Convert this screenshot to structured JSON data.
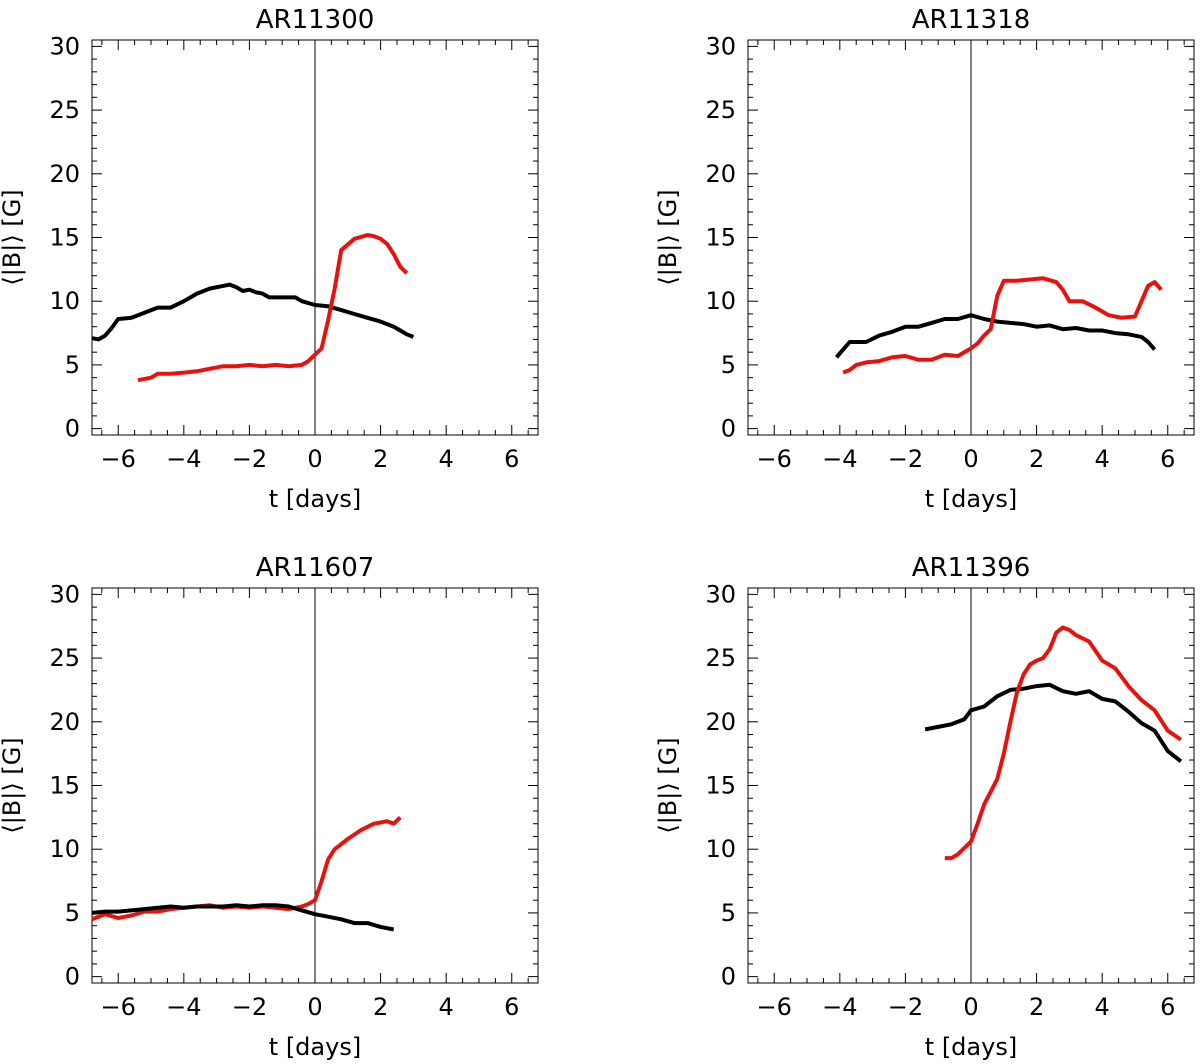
{
  "chart_data": [
    {
      "type": "line",
      "title": "AR11300",
      "xlabel": "t  [days]",
      "ylabel": "⟨|B|⟩ [G]",
      "xlim": [
        -6.8,
        6.8
      ],
      "ylim": [
        -0.5,
        30.5
      ],
      "xticks": [
        -6,
        -4,
        -2,
        0,
        2,
        4,
        6
      ],
      "xtick_labels": [
        "−6",
        "−4",
        "−2",
        "0",
        "2",
        "4",
        "6"
      ],
      "yticks": [
        0,
        5,
        10,
        15,
        20,
        25,
        30
      ],
      "ytick_labels": [
        "0",
        "5",
        "10",
        "15",
        "20",
        "25",
        "30"
      ],
      "vline_x": 0,
      "grid": false,
      "series": [
        {
          "color": "#000000",
          "points": [
            [
              -6.8,
              7.1
            ],
            [
              -6.6,
              7.0
            ],
            [
              -6.4,
              7.3
            ],
            [
              -6.2,
              7.9
            ],
            [
              -6.0,
              8.6
            ],
            [
              -5.6,
              8.7
            ],
            [
              -5.2,
              9.1
            ],
            [
              -4.8,
              9.5
            ],
            [
              -4.4,
              9.5
            ],
            [
              -4.0,
              10.0
            ],
            [
              -3.6,
              10.6
            ],
            [
              -3.2,
              11.0
            ],
            [
              -2.8,
              11.2
            ],
            [
              -2.6,
              11.3
            ],
            [
              -2.4,
              11.1
            ],
            [
              -2.2,
              10.8
            ],
            [
              -2.0,
              10.9
            ],
            [
              -1.8,
              10.7
            ],
            [
              -1.6,
              10.6
            ],
            [
              -1.4,
              10.3
            ],
            [
              -1.0,
              10.3
            ],
            [
              -0.6,
              10.3
            ],
            [
              -0.4,
              10.0
            ],
            [
              0.0,
              9.7
            ],
            [
              0.4,
              9.6
            ],
            [
              0.8,
              9.3
            ],
            [
              1.2,
              9.0
            ],
            [
              1.6,
              8.7
            ],
            [
              2.0,
              8.4
            ],
            [
              2.4,
              8.0
            ],
            [
              2.6,
              7.7
            ],
            [
              2.8,
              7.4
            ],
            [
              3.0,
              7.2
            ]
          ]
        },
        {
          "color": "#e8120c",
          "points": [
            [
              -5.4,
              3.8
            ],
            [
              -5.2,
              3.9
            ],
            [
              -5.0,
              4.0
            ],
            [
              -4.8,
              4.3
            ],
            [
              -4.4,
              4.3
            ],
            [
              -4.0,
              4.4
            ],
            [
              -3.6,
              4.5
            ],
            [
              -3.2,
              4.7
            ],
            [
              -2.8,
              4.9
            ],
            [
              -2.4,
              4.9
            ],
            [
              -2.0,
              5.0
            ],
            [
              -1.6,
              4.9
            ],
            [
              -1.2,
              5.0
            ],
            [
              -0.8,
              4.9
            ],
            [
              -0.4,
              5.0
            ],
            [
              -0.2,
              5.3
            ],
            [
              0.0,
              5.8
            ],
            [
              0.2,
              6.3
            ],
            [
              0.4,
              8.5
            ],
            [
              0.6,
              11.0
            ],
            [
              0.8,
              14.0
            ],
            [
              1.2,
              14.9
            ],
            [
              1.6,
              15.2
            ],
            [
              1.8,
              15.1
            ],
            [
              2.0,
              14.9
            ],
            [
              2.2,
              14.5
            ],
            [
              2.4,
              13.7
            ],
            [
              2.6,
              12.7
            ],
            [
              2.8,
              12.2
            ]
          ]
        }
      ]
    },
    {
      "type": "line",
      "title": "AR11318",
      "xlabel": "t  [days]",
      "ylabel": "⟨|B|⟩ [G]",
      "xlim": [
        -6.8,
        6.8
      ],
      "ylim": [
        -0.5,
        30.5
      ],
      "xticks": [
        -6,
        -4,
        -2,
        0,
        2,
        4,
        6
      ],
      "xtick_labels": [
        "−6",
        "−4",
        "−2",
        "0",
        "2",
        "4",
        "6"
      ],
      "yticks": [
        0,
        5,
        10,
        15,
        20,
        25,
        30
      ],
      "ytick_labels": [
        "0",
        "5",
        "10",
        "15",
        "20",
        "25",
        "30"
      ],
      "vline_x": 0,
      "grid": false,
      "series": [
        {
          "color": "#000000",
          "points": [
            [
              -4.1,
              5.6
            ],
            [
              -3.9,
              6.2
            ],
            [
              -3.7,
              6.8
            ],
            [
              -3.5,
              6.8
            ],
            [
              -3.2,
              6.8
            ],
            [
              -2.8,
              7.3
            ],
            [
              -2.4,
              7.6
            ],
            [
              -2.0,
              8.0
            ],
            [
              -1.6,
              8.0
            ],
            [
              -1.2,
              8.3
            ],
            [
              -0.8,
              8.6
            ],
            [
              -0.4,
              8.6
            ],
            [
              0.0,
              8.9
            ],
            [
              0.4,
              8.6
            ],
            [
              0.8,
              8.4
            ],
            [
              1.2,
              8.3
            ],
            [
              1.6,
              8.2
            ],
            [
              2.0,
              8.0
            ],
            [
              2.4,
              8.1
            ],
            [
              2.8,
              7.8
            ],
            [
              3.2,
              7.9
            ],
            [
              3.6,
              7.7
            ],
            [
              4.0,
              7.7
            ],
            [
              4.4,
              7.5
            ],
            [
              4.8,
              7.4
            ],
            [
              5.2,
              7.2
            ],
            [
              5.4,
              6.8
            ],
            [
              5.6,
              6.2
            ]
          ]
        },
        {
          "color": "#e8120c",
          "points": [
            [
              -3.9,
              4.4
            ],
            [
              -3.7,
              4.6
            ],
            [
              -3.5,
              5.0
            ],
            [
              -3.2,
              5.2
            ],
            [
              -2.8,
              5.3
            ],
            [
              -2.4,
              5.6
            ],
            [
              -2.0,
              5.7
            ],
            [
              -1.6,
              5.4
            ],
            [
              -1.2,
              5.4
            ],
            [
              -0.8,
              5.8
            ],
            [
              -0.4,
              5.7
            ],
            [
              0.0,
              6.3
            ],
            [
              0.2,
              6.7
            ],
            [
              0.4,
              7.3
            ],
            [
              0.6,
              7.8
            ],
            [
              0.8,
              10.4
            ],
            [
              1.0,
              11.6
            ],
            [
              1.4,
              11.6
            ],
            [
              1.8,
              11.7
            ],
            [
              2.2,
              11.8
            ],
            [
              2.6,
              11.5
            ],
            [
              2.8,
              10.9
            ],
            [
              3.0,
              10.0
            ],
            [
              3.4,
              10.0
            ],
            [
              3.8,
              9.5
            ],
            [
              4.2,
              8.9
            ],
            [
              4.6,
              8.7
            ],
            [
              5.0,
              8.8
            ],
            [
              5.2,
              10.0
            ],
            [
              5.4,
              11.2
            ],
            [
              5.6,
              11.5
            ],
            [
              5.8,
              10.9
            ]
          ]
        }
      ]
    },
    {
      "type": "line",
      "title": "AR11607",
      "xlabel": "t  [days]",
      "ylabel": "⟨|B|⟩ [G]",
      "xlim": [
        -6.8,
        6.8
      ],
      "ylim": [
        -0.5,
        30.5
      ],
      "xticks": [
        -6,
        -4,
        -2,
        0,
        2,
        4,
        6
      ],
      "xtick_labels": [
        "−6",
        "−4",
        "−2",
        "0",
        "2",
        "4",
        "6"
      ],
      "yticks": [
        0,
        5,
        10,
        15,
        20,
        25,
        30
      ],
      "ytick_labels": [
        "0",
        "5",
        "10",
        "15",
        "20",
        "25",
        "30"
      ],
      "vline_x": 0,
      "grid": false,
      "series": [
        {
          "color": "#e8120c",
          "points": [
            [
              -6.8,
              4.5
            ],
            [
              -6.4,
              4.9
            ],
            [
              -6.0,
              4.6
            ],
            [
              -5.6,
              4.8
            ],
            [
              -5.2,
              5.1
            ],
            [
              -4.8,
              5.1
            ],
            [
              -4.4,
              5.3
            ],
            [
              -4.0,
              5.4
            ],
            [
              -3.6,
              5.5
            ],
            [
              -3.2,
              5.6
            ],
            [
              -2.8,
              5.4
            ],
            [
              -2.4,
              5.5
            ],
            [
              -2.0,
              5.4
            ],
            [
              -1.6,
              5.5
            ],
            [
              -1.2,
              5.4
            ],
            [
              -0.8,
              5.3
            ],
            [
              -0.4,
              5.5
            ],
            [
              -0.2,
              5.7
            ],
            [
              0.0,
              6.0
            ],
            [
              0.2,
              7.5
            ],
            [
              0.4,
              9.2
            ],
            [
              0.6,
              10.0
            ],
            [
              1.0,
              10.8
            ],
            [
              1.4,
              11.5
            ],
            [
              1.8,
              12.0
            ],
            [
              2.2,
              12.2
            ],
            [
              2.4,
              12.0
            ],
            [
              2.6,
              12.5
            ]
          ]
        },
        {
          "color": "#000000",
          "points": [
            [
              -6.8,
              5.0
            ],
            [
              -6.4,
              5.1
            ],
            [
              -6.0,
              5.1
            ],
            [
              -5.6,
              5.2
            ],
            [
              -5.2,
              5.3
            ],
            [
              -4.8,
              5.4
            ],
            [
              -4.4,
              5.5
            ],
            [
              -4.0,
              5.4
            ],
            [
              -3.6,
              5.5
            ],
            [
              -3.2,
              5.5
            ],
            [
              -2.8,
              5.5
            ],
            [
              -2.4,
              5.6
            ],
            [
              -2.0,
              5.5
            ],
            [
              -1.6,
              5.6
            ],
            [
              -1.2,
              5.6
            ],
            [
              -0.8,
              5.5
            ],
            [
              -0.4,
              5.2
            ],
            [
              0.0,
              4.9
            ],
            [
              0.4,
              4.7
            ],
            [
              0.8,
              4.5
            ],
            [
              1.2,
              4.2
            ],
            [
              1.6,
              4.2
            ],
            [
              2.0,
              3.9
            ],
            [
              2.4,
              3.7
            ]
          ]
        }
      ]
    },
    {
      "type": "line",
      "title": "AR11396",
      "xlabel": "t  [days]",
      "ylabel": "⟨|B|⟩ [G]",
      "xlim": [
        -6.8,
        6.8
      ],
      "ylim": [
        -0.5,
        30.5
      ],
      "xticks": [
        -6,
        -4,
        -2,
        0,
        2,
        4,
        6
      ],
      "xtick_labels": [
        "−6",
        "−4",
        "−2",
        "0",
        "2",
        "4",
        "6"
      ],
      "yticks": [
        0,
        5,
        10,
        15,
        20,
        25,
        30
      ],
      "ytick_labels": [
        "0",
        "5",
        "10",
        "15",
        "20",
        "25",
        "30"
      ],
      "vline_x": 0,
      "grid": false,
      "series": [
        {
          "color": "#000000",
          "points": [
            [
              -1.4,
              19.4
            ],
            [
              -1.0,
              19.6
            ],
            [
              -0.6,
              19.8
            ],
            [
              -0.2,
              20.2
            ],
            [
              0.0,
              20.9
            ],
            [
              0.4,
              21.2
            ],
            [
              0.8,
              22.0
            ],
            [
              1.2,
              22.5
            ],
            [
              1.6,
              22.6
            ],
            [
              2.0,
              22.8
            ],
            [
              2.4,
              22.9
            ],
            [
              2.8,
              22.4
            ],
            [
              3.2,
              22.2
            ],
            [
              3.6,
              22.4
            ],
            [
              4.0,
              21.8
            ],
            [
              4.4,
              21.6
            ],
            [
              4.8,
              20.8
            ],
            [
              5.2,
              19.9
            ],
            [
              5.6,
              19.3
            ],
            [
              6.0,
              17.7
            ],
            [
              6.4,
              16.9
            ]
          ]
        },
        {
          "color": "#e8120c",
          "points": [
            [
              -0.8,
              9.3
            ],
            [
              -0.6,
              9.3
            ],
            [
              -0.4,
              9.6
            ],
            [
              -0.2,
              10.1
            ],
            [
              0.0,
              10.6
            ],
            [
              0.2,
              12.0
            ],
            [
              0.4,
              13.5
            ],
            [
              0.8,
              15.5
            ],
            [
              1.0,
              17.5
            ],
            [
              1.2,
              20.0
            ],
            [
              1.4,
              22.3
            ],
            [
              1.6,
              23.7
            ],
            [
              1.8,
              24.5
            ],
            [
              2.0,
              24.8
            ],
            [
              2.2,
              25.0
            ],
            [
              2.4,
              25.7
            ],
            [
              2.6,
              27.0
            ],
            [
              2.8,
              27.4
            ],
            [
              3.0,
              27.2
            ],
            [
              3.2,
              26.8
            ],
            [
              3.6,
              26.3
            ],
            [
              4.0,
              24.8
            ],
            [
              4.4,
              24.2
            ],
            [
              4.8,
              22.8
            ],
            [
              5.2,
              21.7
            ],
            [
              5.6,
              20.9
            ],
            [
              6.0,
              19.3
            ],
            [
              6.4,
              18.6
            ]
          ]
        }
      ]
    }
  ]
}
